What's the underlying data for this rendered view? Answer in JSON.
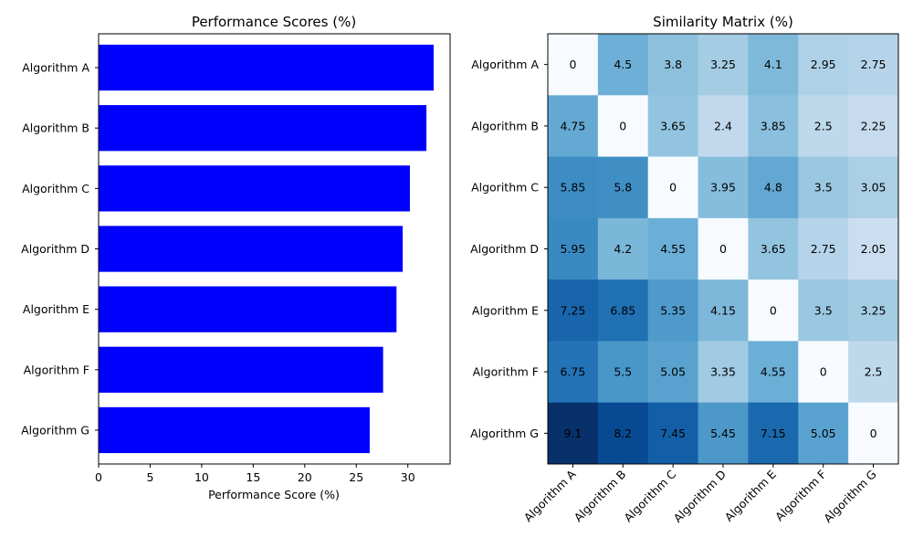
{
  "chart_data": [
    {
      "type": "bar",
      "orientation": "horizontal",
      "title": "Performance Scores (%)",
      "xlabel": "Performance Score (%)",
      "ylabel": "",
      "categories": [
        "Algorithm A",
        "Algorithm B",
        "Algorithm C",
        "Algorithm D",
        "Algorithm E",
        "Algorithm F",
        "Algorithm G"
      ],
      "values": [
        32.5,
        31.8,
        30.2,
        29.5,
        28.9,
        27.6,
        26.3
      ],
      "xlim": [
        0,
        34.1
      ],
      "xticks": [
        0,
        5,
        10,
        15,
        20,
        25,
        30
      ],
      "bar_color": "#0000ff",
      "grid": false
    },
    {
      "type": "heatmap",
      "title": "Similarity Matrix (%)",
      "rows": [
        "Algorithm A",
        "Algorithm B",
        "Algorithm C",
        "Algorithm D",
        "Algorithm E",
        "Algorithm F",
        "Algorithm G"
      ],
      "cols": [
        "Algorithm A",
        "Algorithm B",
        "Algorithm C",
        "Algorithm D",
        "Algorithm E",
        "Algorithm F",
        "Algorithm G"
      ],
      "values": [
        [
          0.0,
          4.5,
          3.8,
          3.25,
          4.1,
          2.95,
          2.75
        ],
        [
          4.75,
          0.0,
          3.65,
          2.4,
          3.85,
          2.5,
          2.25
        ],
        [
          5.85,
          5.8,
          0.0,
          3.95,
          4.8,
          3.5,
          3.05
        ],
        [
          5.95,
          4.2,
          4.55,
          0.0,
          3.65,
          2.75,
          2.05
        ],
        [
          7.25,
          6.85,
          5.35,
          4.15,
          0.0,
          3.5,
          3.25
        ],
        [
          6.75,
          5.5,
          5.05,
          3.35,
          4.55,
          0.0,
          2.5
        ],
        [
          9.1,
          8.2,
          7.45,
          5.45,
          7.15,
          5.05,
          0.0
        ]
      ],
      "value_range": [
        0.0,
        9.1
      ],
      "colormap": "Blues",
      "grid": false
    }
  ]
}
